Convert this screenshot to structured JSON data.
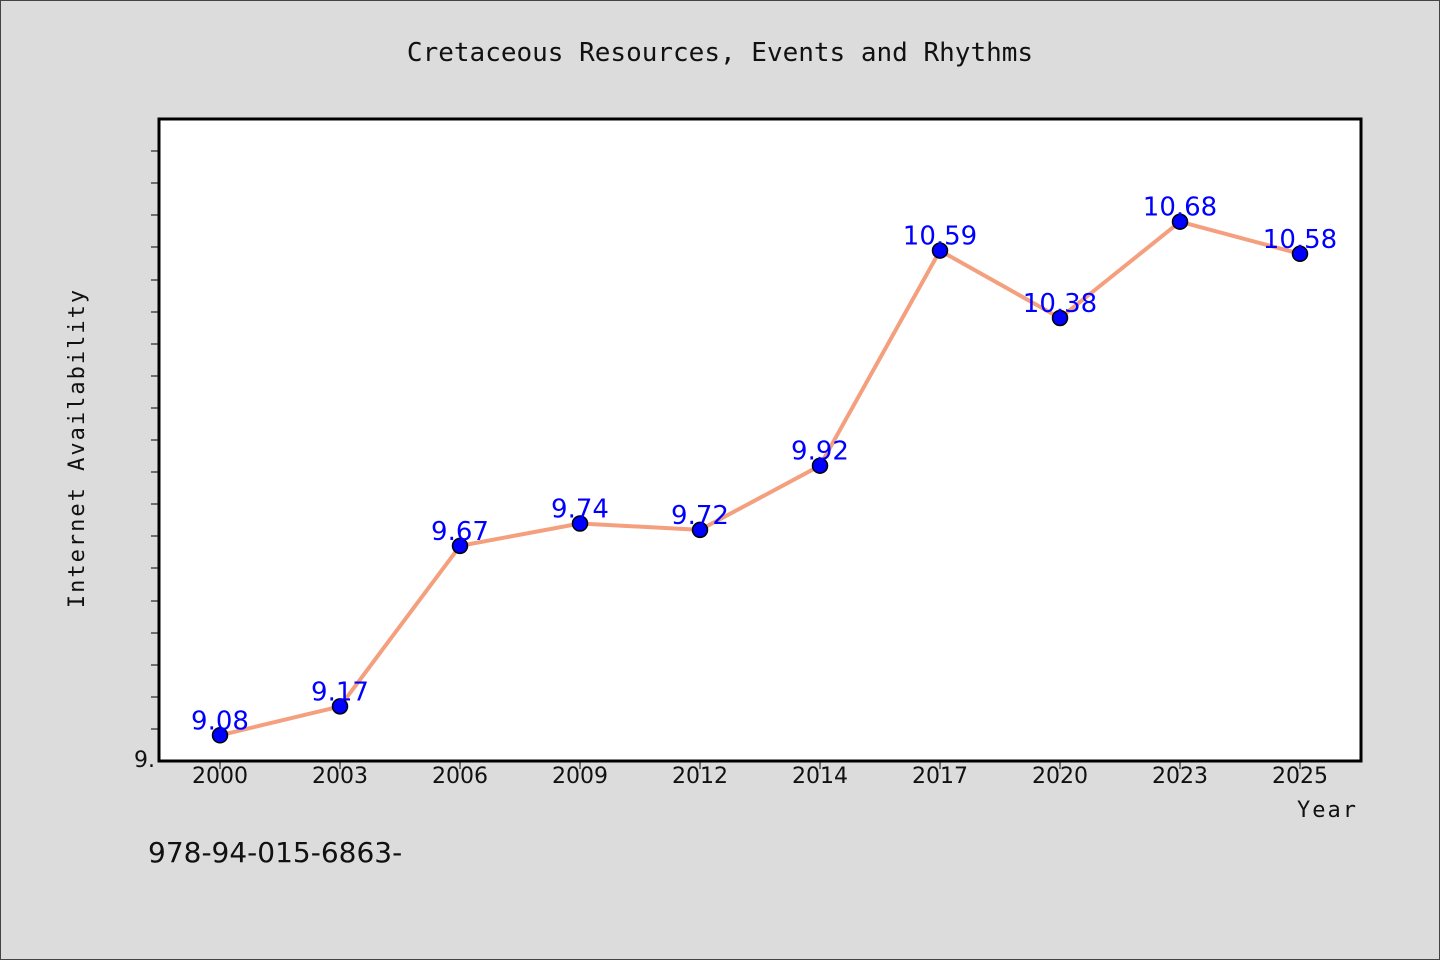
{
  "chart_data": {
    "type": "line",
    "title": "Cretaceous Resources, Events and Rhythms",
    "xlabel": "Year",
    "ylabel": "Internet Availability",
    "categories": [
      "2000",
      "2003",
      "2006",
      "2009",
      "2012",
      "2014",
      "2017",
      "2020",
      "2023",
      "2025"
    ],
    "series": [
      {
        "values": [
          9.08,
          9.17,
          9.67,
          9.74,
          9.72,
          9.92,
          10.59,
          10.38,
          10.68,
          10.58
        ]
      }
    ],
    "data_labels": [
      "9.08",
      "9.17",
      "9.67",
      "9.74",
      "9.72",
      "9.92",
      "10.59",
      "10.38",
      "10.68",
      "10.58"
    ],
    "ylim": [
      9.0,
      11.0
    ],
    "y_tick_label": "9.",
    "grid": false,
    "legend": "none",
    "line_color": "#f4a07e",
    "marker_color": "#0000ff",
    "data_label_color": "#0000ff",
    "background_color": "#dcdcdc",
    "plot_background": "#ffffff"
  },
  "footer_note": "978-94-015-6863-"
}
